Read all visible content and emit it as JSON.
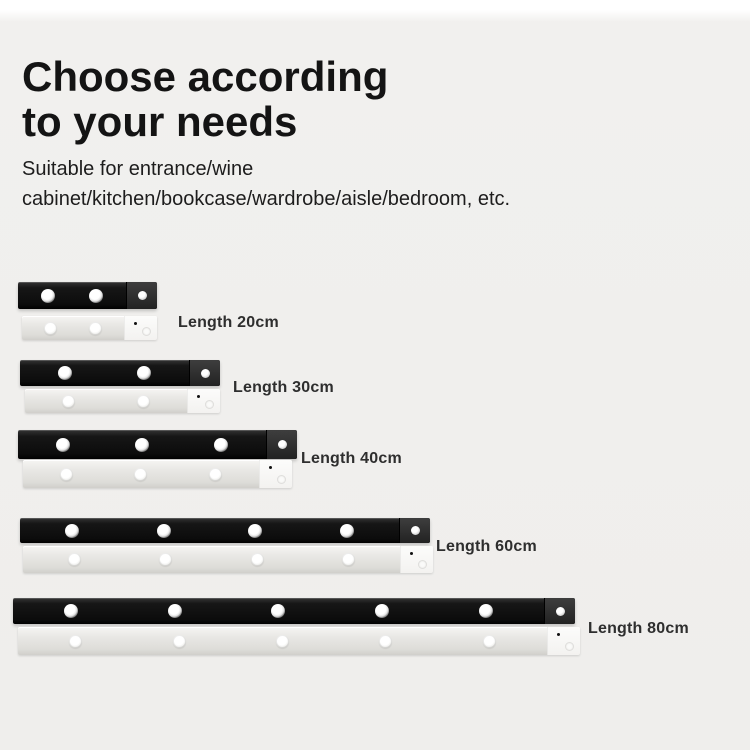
{
  "heading": {
    "lines": [
      "Choose according",
      "to your needs"
    ]
  },
  "subtitle": {
    "lines": [
      "Suitable for entrance/wine",
      "cabinet/kitchen/bookcase/wardrobe/aisle/bedroom, etc."
    ]
  },
  "products": [
    {
      "id": "20cm",
      "label": "Length 20cm",
      "led_count": 2,
      "variants": [
        "black",
        "silver"
      ]
    },
    {
      "id": "30cm",
      "label": "Length 30cm",
      "led_count": 2,
      "variants": [
        "black",
        "silver"
      ]
    },
    {
      "id": "40cm",
      "label": "Length 40cm",
      "led_count": 3,
      "variants": [
        "black",
        "silver"
      ]
    },
    {
      "id": "60cm",
      "label": "Length 60cm",
      "led_count": 4,
      "variants": [
        "black",
        "silver"
      ]
    },
    {
      "id": "80cm",
      "label": "Length 80cm",
      "led_count": 5,
      "variants": [
        "black",
        "silver"
      ]
    }
  ],
  "colors": {
    "background": "#f0efed",
    "bar_black": "#161616",
    "bar_silver": "#e8e7e4",
    "heading_text": "#141414",
    "label_text": "#2e2e2e"
  }
}
